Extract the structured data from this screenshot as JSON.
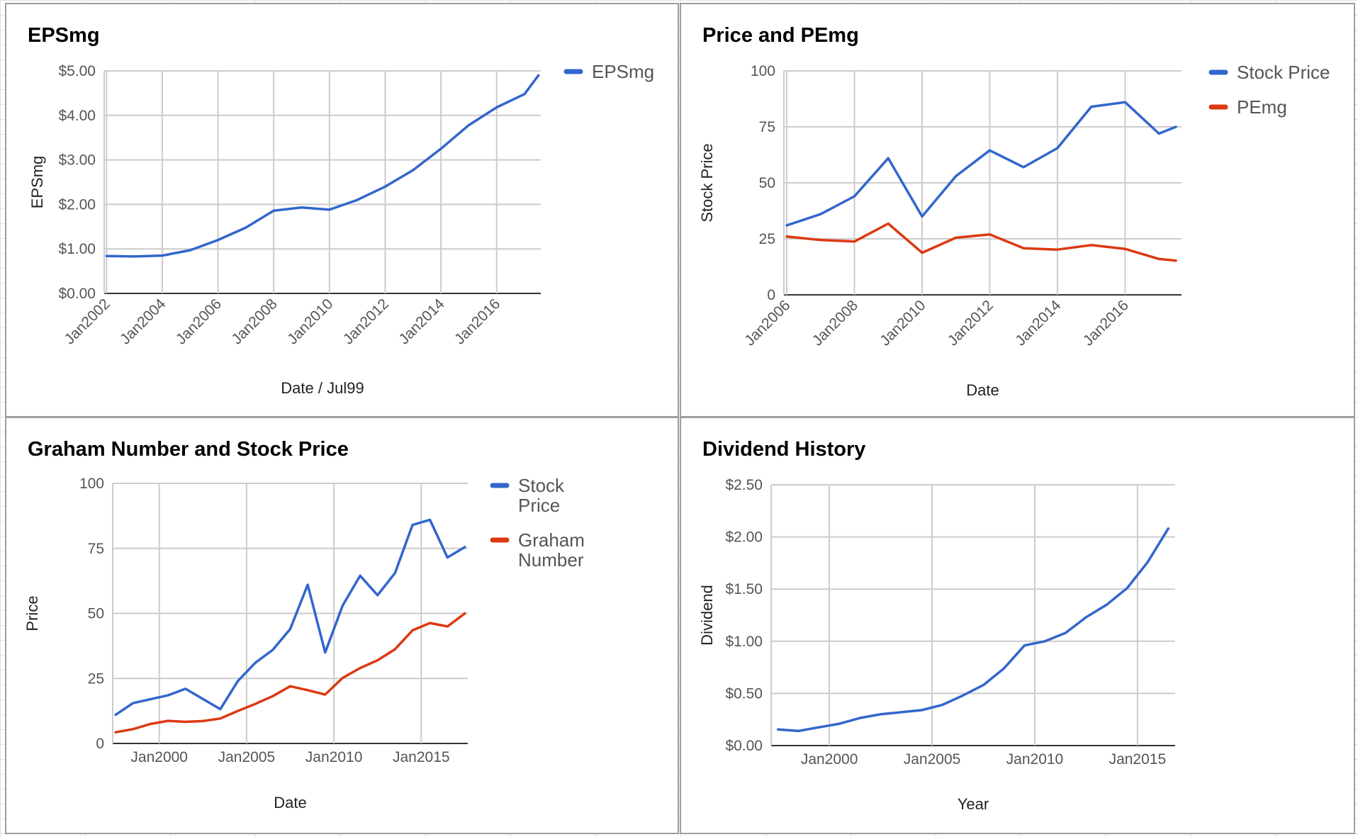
{
  "chart_data": [
    {
      "id": "eps",
      "type": "line",
      "title": "EPSmg",
      "xlabel": "Date / Jul99",
      "ylabel": "EPSmg",
      "x_axis_type": "date",
      "ylim": [
        0,
        5
      ],
      "y_ticks": [
        "$0.00",
        "$1.00",
        "$2.00",
        "$3.00",
        "$4.00",
        "$5.00"
      ],
      "x_ticks": [
        "Jan2002",
        "Jan2004",
        "Jan2006",
        "Jan2008",
        "Jan2010",
        "Jan2012",
        "Jan2014",
        "Jan2016"
      ],
      "x_tick_rotation_deg": -45,
      "grid": true,
      "legend_position": "right",
      "series": [
        {
          "name": "EPSmg",
          "color": "#3366cc",
          "points": [
            [
              "2002-01",
              0.84
            ],
            [
              "2003-01",
              0.83
            ],
            [
              "2004-01",
              0.85
            ],
            [
              "2005-01",
              0.97
            ],
            [
              "2006-01",
              1.2
            ],
            [
              "2007-01",
              1.48
            ],
            [
              "2008-01",
              1.86
            ],
            [
              "2009-01",
              1.93
            ],
            [
              "2010-01",
              1.88
            ],
            [
              "2011-01",
              2.1
            ],
            [
              "2012-01",
              2.4
            ],
            [
              "2013-01",
              2.77
            ],
            [
              "2014-01",
              3.25
            ],
            [
              "2015-01",
              3.78
            ],
            [
              "2016-01",
              4.18
            ],
            [
              "2017-01",
              4.48
            ],
            [
              "2017-07",
              4.9
            ]
          ]
        }
      ]
    },
    {
      "id": "price",
      "type": "line",
      "title": "Price and PEmg",
      "xlabel": "Date",
      "ylabel": "Stock Price",
      "x_axis_type": "date",
      "ylim": [
        0,
        100
      ],
      "y_ticks": [
        "0",
        "25",
        "50",
        "75",
        "100"
      ],
      "x_ticks": [
        "Jan2006",
        "Jan2008",
        "Jan2010",
        "Jan2012",
        "Jan2014",
        "Jan2016"
      ],
      "x_tick_rotation_deg": -45,
      "grid": true,
      "legend_position": "right",
      "series": [
        {
          "name": "Stock Price",
          "color": "#3366cc",
          "points": [
            [
              "2006-01",
              31.0
            ],
            [
              "2007-01",
              36.0
            ],
            [
              "2008-01",
              44.0
            ],
            [
              "2009-01",
              61.0
            ],
            [
              "2010-01",
              35.0
            ],
            [
              "2011-01",
              53.0
            ],
            [
              "2012-01",
              64.5
            ],
            [
              "2013-01",
              57.0
            ],
            [
              "2014-01",
              65.5
            ],
            [
              "2015-01",
              84.0
            ],
            [
              "2016-01",
              86.0
            ],
            [
              "2017-01",
              72.0
            ],
            [
              "2017-07",
              75.0
            ]
          ]
        },
        {
          "name": "PEmg",
          "color": "#dc3912",
          "points": [
            [
              "2006-01",
              26.0
            ],
            [
              "2007-01",
              24.5
            ],
            [
              "2008-01",
              23.8
            ],
            [
              "2009-01",
              31.8
            ],
            [
              "2010-01",
              18.8
            ],
            [
              "2011-01",
              25.5
            ],
            [
              "2012-01",
              27.0
            ],
            [
              "2013-01",
              20.8
            ],
            [
              "2014-01",
              20.2
            ],
            [
              "2015-01",
              22.2
            ],
            [
              "2016-01",
              20.5
            ],
            [
              "2017-01",
              16.0
            ],
            [
              "2017-07",
              15.3
            ]
          ]
        }
      ]
    },
    {
      "id": "graham",
      "type": "line",
      "title": "Graham Number and Stock Price",
      "xlabel": "Date",
      "ylabel": "Price",
      "x_axis_type": "date",
      "ylim": [
        0,
        100
      ],
      "y_ticks": [
        "0",
        "25",
        "50",
        "75",
        "100"
      ],
      "x_ticks": [
        "Jan2000",
        "Jan2005",
        "Jan2010",
        "Jan2015"
      ],
      "x_tick_rotation_deg": 0,
      "grid": true,
      "legend_position": "right",
      "series": [
        {
          "name": "Stock Price",
          "color": "#3366cc",
          "points": [
            [
              "1997-07",
              11.0
            ],
            [
              "1998-07",
              15.5
            ],
            [
              "1999-07",
              17.0
            ],
            [
              "2000-07",
              18.5
            ],
            [
              "2001-07",
              21.0
            ],
            [
              "2003-07",
              13.2
            ],
            [
              "2004-07",
              24.0
            ],
            [
              "2005-07",
              31.0
            ],
            [
              "2006-07",
              36.0
            ],
            [
              "2007-07",
              44.0
            ],
            [
              "2008-07",
              61.0
            ],
            [
              "2009-07",
              35.0
            ],
            [
              "2010-07",
              53.0
            ],
            [
              "2011-07",
              64.5
            ],
            [
              "2012-07",
              57.0
            ],
            [
              "2013-07",
              65.5
            ],
            [
              "2014-07",
              84.0
            ],
            [
              "2015-07",
              86.0
            ],
            [
              "2016-07",
              71.5
            ],
            [
              "2017-07",
              75.5
            ]
          ]
        },
        {
          "name": "Graham Number",
          "color": "#dc3912",
          "points": [
            [
              "1997-07",
              4.3
            ],
            [
              "1998-07",
              5.5
            ],
            [
              "1999-07",
              7.5
            ],
            [
              "2000-07",
              8.7
            ],
            [
              "2001-07",
              8.3
            ],
            [
              "2002-07",
              8.6
            ],
            [
              "2003-07",
              9.6
            ],
            [
              "2004-07",
              12.5
            ],
            [
              "2005-07",
              15.2
            ],
            [
              "2006-07",
              18.2
            ],
            [
              "2007-07",
              22.0
            ],
            [
              "2008-07",
              20.5
            ],
            [
              "2009-07",
              18.8
            ],
            [
              "2010-07",
              25.2
            ],
            [
              "2011-07",
              29.0
            ],
            [
              "2012-07",
              32.0
            ],
            [
              "2013-07",
              36.2
            ],
            [
              "2014-07",
              43.5
            ],
            [
              "2015-07",
              46.3
            ],
            [
              "2016-07",
              45.0
            ],
            [
              "2017-07",
              50.0
            ]
          ]
        }
      ]
    },
    {
      "id": "dividend",
      "type": "line",
      "title": "Dividend History",
      "xlabel": "Year",
      "ylabel": "Dividend",
      "x_axis_type": "date",
      "ylim": [
        0,
        2.5
      ],
      "y_ticks": [
        "$0.00",
        "$0.50",
        "$1.00",
        "$1.50",
        "$2.00",
        "$2.50"
      ],
      "x_ticks": [
        "Jan2000",
        "Jan2005",
        "Jan2010",
        "Jan2015"
      ],
      "x_tick_rotation_deg": 0,
      "grid": true,
      "legend_position": "none",
      "series": [
        {
          "name": "Dividend",
          "color": "#3366cc",
          "points": [
            [
              "1997-07",
              0.155
            ],
            [
              "1998-07",
              0.14
            ],
            [
              "1999-07",
              0.175
            ],
            [
              "2000-07",
              0.21
            ],
            [
              "2001-07",
              0.265
            ],
            [
              "2002-07",
              0.3
            ],
            [
              "2003-07",
              0.32
            ],
            [
              "2004-07",
              0.34
            ],
            [
              "2005-07",
              0.39
            ],
            [
              "2006-07",
              0.48
            ],
            [
              "2007-07",
              0.58
            ],
            [
              "2008-07",
              0.74
            ],
            [
              "2009-07",
              0.96
            ],
            [
              "2010-07",
              1.0
            ],
            [
              "2011-07",
              1.08
            ],
            [
              "2012-07",
              1.23
            ],
            [
              "2013-07",
              1.35
            ],
            [
              "2014-07",
              1.51
            ],
            [
              "2015-07",
              1.76
            ],
            [
              "2016-07",
              2.08
            ]
          ]
        }
      ]
    }
  ]
}
